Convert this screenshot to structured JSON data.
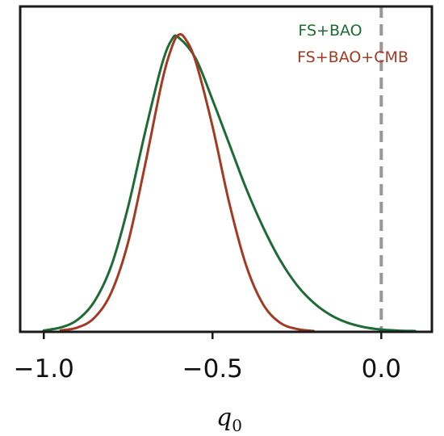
{
  "chart_data": {
    "type": "line",
    "title": "",
    "xlabel": "q",
    "xlabel_sub": "0",
    "ylabel": "",
    "xlim": [
      -1.07,
      0.15
    ],
    "ylim": [
      0,
      1.0
    ],
    "xticks": [
      -1.0,
      -0.5,
      0.0
    ],
    "xtick_labels": [
      "−1.0",
      "−0.5",
      "0.0"
    ],
    "grid": false,
    "legend_position": "top-right",
    "reference_line": {
      "x": 0.0,
      "style": "dashed",
      "color": "#999999"
    },
    "series": [
      {
        "name": "FS+BAO",
        "color": "#1f6b35",
        "x": [
          -1.0,
          -0.95,
          -0.9,
          -0.85,
          -0.8,
          -0.75,
          -0.7,
          -0.65,
          -0.62,
          -0.6,
          -0.55,
          -0.5,
          -0.45,
          -0.4,
          -0.35,
          -0.3,
          -0.25,
          -0.2,
          -0.15,
          -0.1,
          -0.05,
          0.0,
          0.05,
          0.1
        ],
        "y": [
          0.002,
          0.012,
          0.038,
          0.1,
          0.22,
          0.42,
          0.67,
          0.9,
          0.985,
          0.99,
          0.92,
          0.78,
          0.63,
          0.48,
          0.35,
          0.24,
          0.155,
          0.095,
          0.054,
          0.028,
          0.013,
          0.005,
          0.0015,
          0.0
        ]
      },
      {
        "name": "FS+BAO+CMB",
        "color": "#a33a22",
        "x": [
          -0.95,
          -0.9,
          -0.85,
          -0.8,
          -0.75,
          -0.7,
          -0.65,
          -0.62,
          -0.6,
          -0.58,
          -0.55,
          -0.5,
          -0.45,
          -0.4,
          -0.35,
          -0.3,
          -0.25,
          -0.2
        ],
        "y": [
          0.002,
          0.012,
          0.045,
          0.13,
          0.3,
          0.56,
          0.84,
          0.96,
          1.0,
          0.985,
          0.91,
          0.69,
          0.43,
          0.22,
          0.09,
          0.028,
          0.007,
          0.0
        ]
      }
    ]
  }
}
